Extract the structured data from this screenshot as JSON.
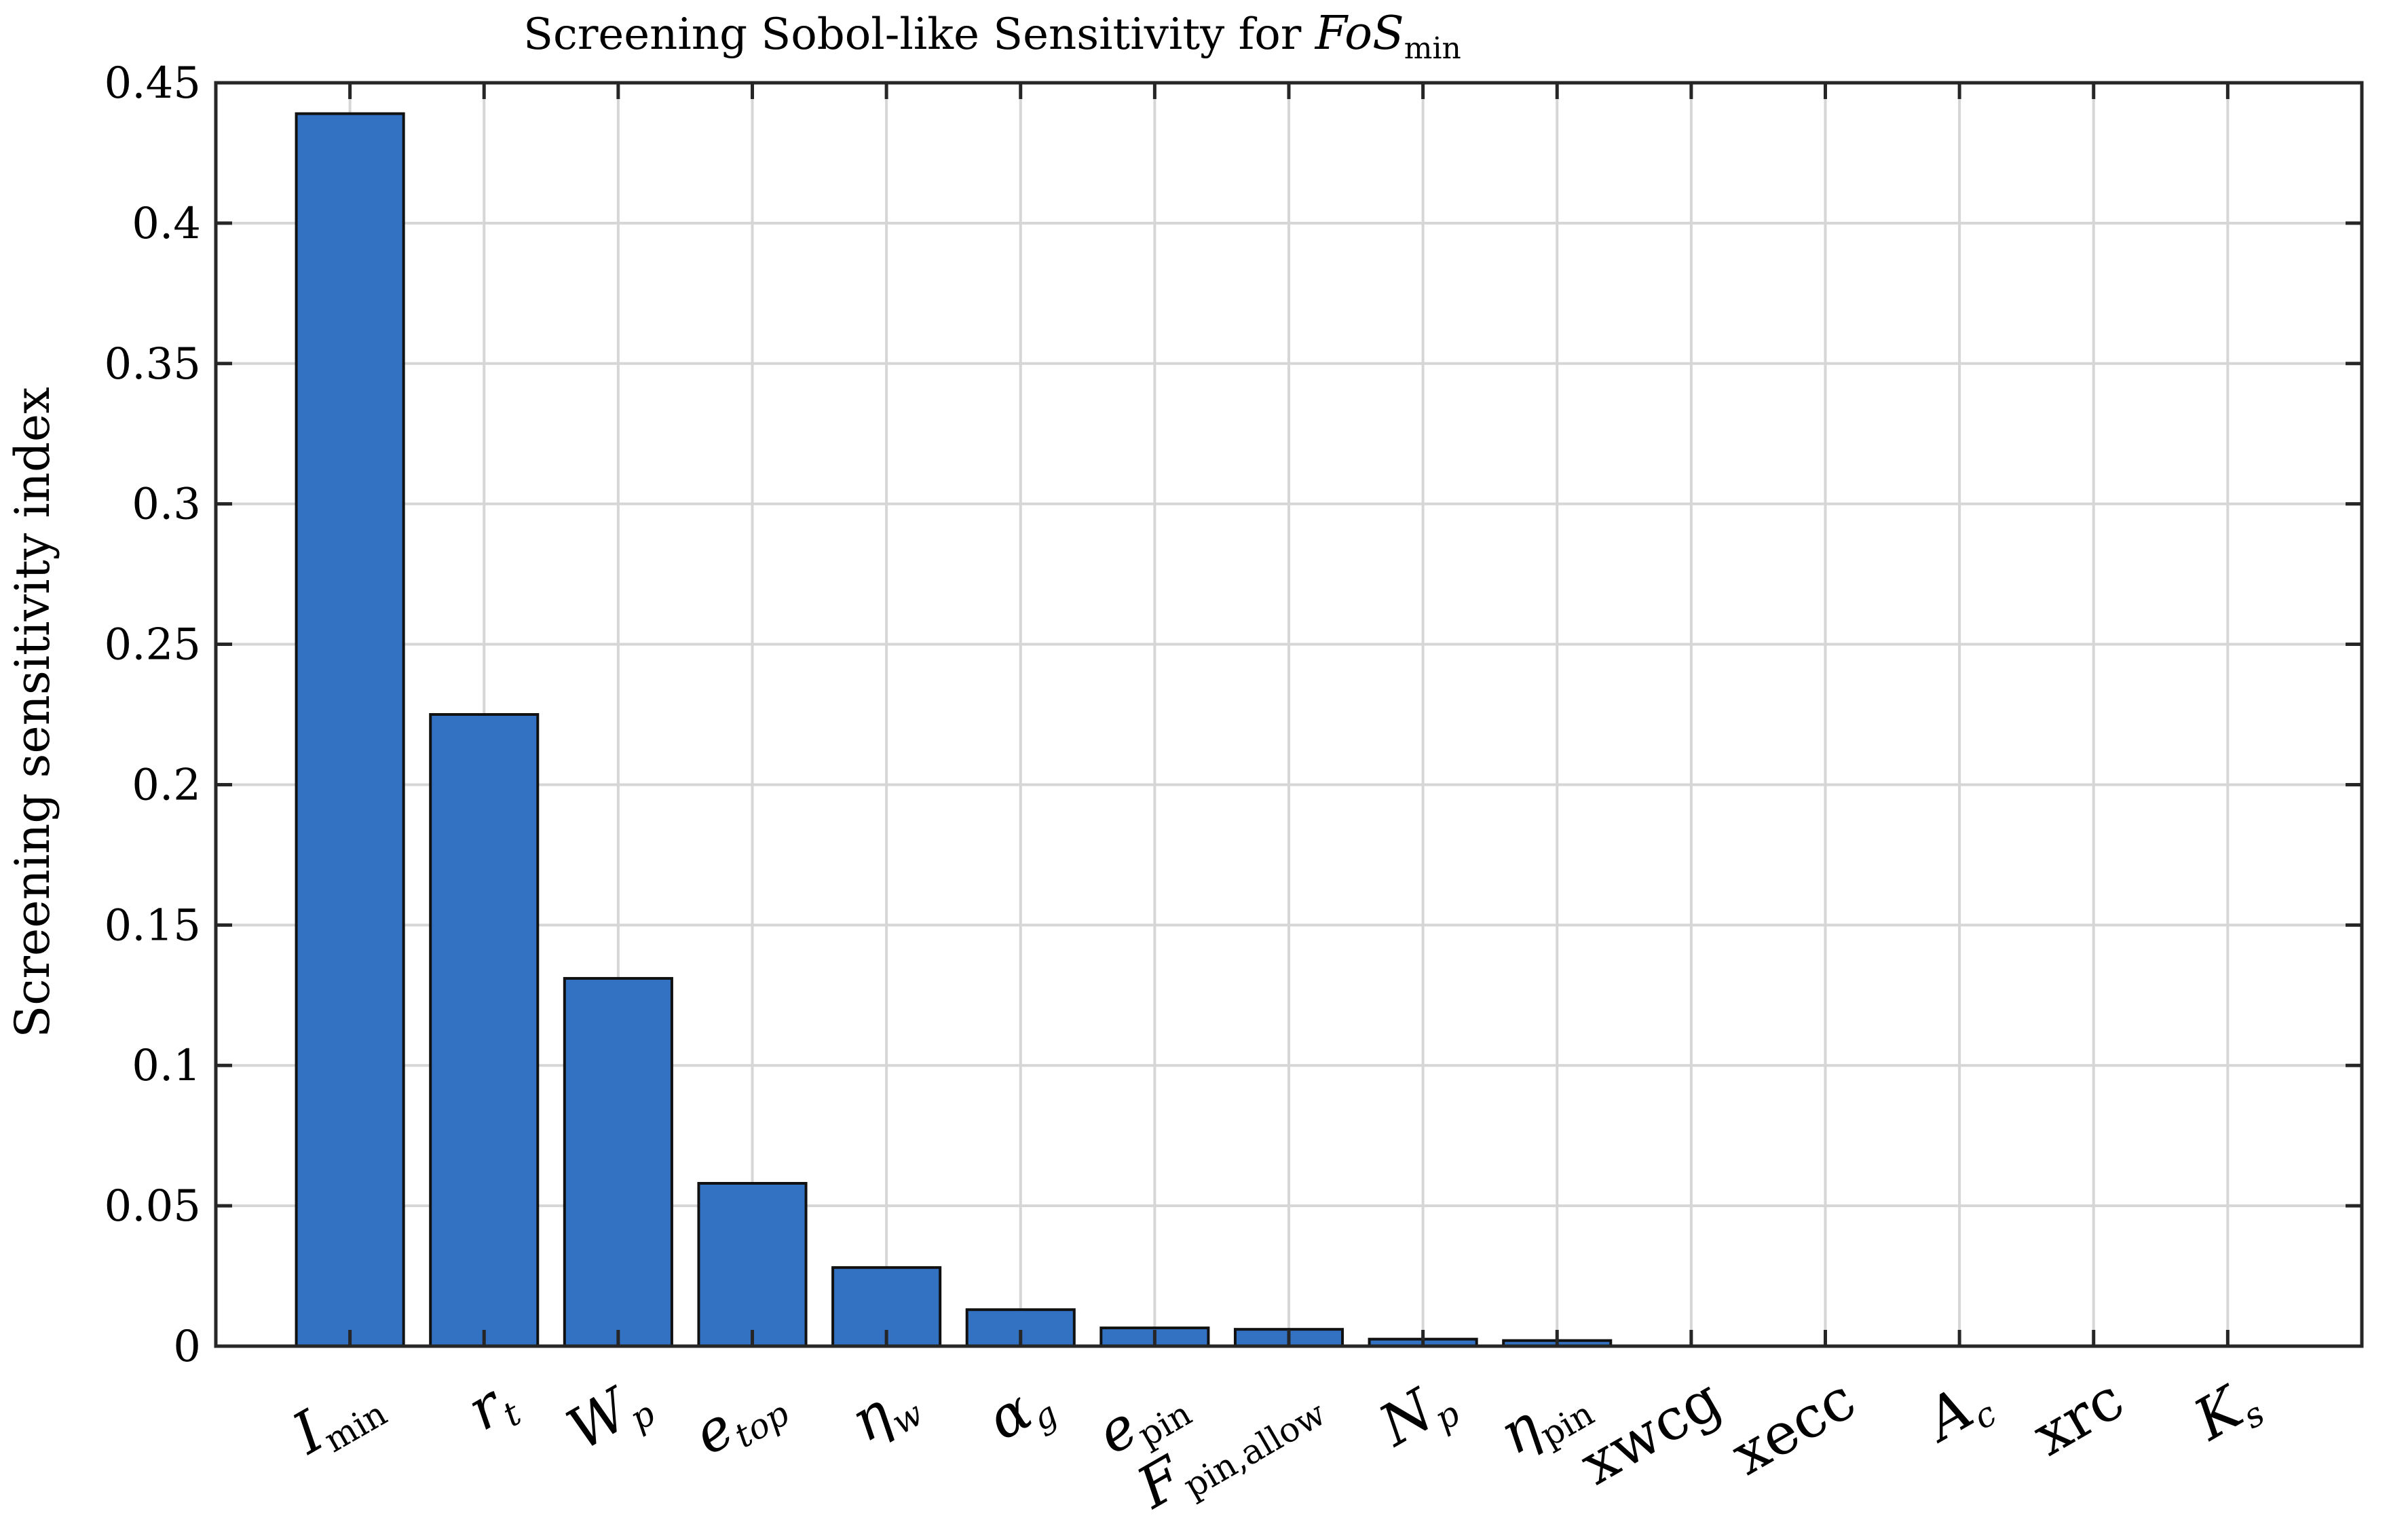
{
  "chart_data": {
    "type": "bar",
    "title": "Screening Sobol-like Sensitivity for FoS_min",
    "title_parts": {
      "prefix": "Screening Sobol-like Sensitivity for ",
      "math_base": "FoS",
      "math_sub": "min"
    },
    "xlabel": "",
    "ylabel": "Screening sensitivity index",
    "ylim": [
      0,
      0.45
    ],
    "yticks": [
      "0",
      "0.05",
      "0.1",
      "0.15",
      "0.2",
      "0.25",
      "0.3",
      "0.35",
      "0.4",
      "0.45"
    ],
    "grid": true,
    "legend": "none",
    "bar_color": "#3372c2",
    "categories": [
      {
        "base": "I",
        "sub": "min",
        "italic_base": true,
        "italic_sub": false
      },
      {
        "base": "r",
        "sub": "t",
        "italic_base": true,
        "italic_sub": true
      },
      {
        "base": "W",
        "sub": "p",
        "italic_base": true,
        "italic_sub": true
      },
      {
        "base": "e",
        "sub": "top",
        "italic_base": true,
        "italic_sub": true
      },
      {
        "base": "η",
        "sub": "w",
        "italic_base": true,
        "italic_sub": true
      },
      {
        "base": "α",
        "sub": "g",
        "italic_base": true,
        "italic_sub": true
      },
      {
        "base": "e",
        "sub": "pin",
        "italic_base": true,
        "italic_sub": false
      },
      {
        "base": "F",
        "sub": "pin,allow",
        "italic_base": true,
        "italic_sub": false
      },
      {
        "base": "N",
        "sub": "p",
        "italic_base": true,
        "italic_sub": true
      },
      {
        "base": "η",
        "sub": "pin",
        "italic_base": true,
        "italic_sub": false
      },
      {
        "base": "xwcg",
        "sub": "",
        "italic_base": false,
        "italic_sub": false
      },
      {
        "base": "xecc",
        "sub": "",
        "italic_base": false,
        "italic_sub": false
      },
      {
        "base": "A",
        "sub": "c",
        "italic_base": true,
        "italic_sub": true
      },
      {
        "base": "xrc",
        "sub": "",
        "italic_base": false,
        "italic_sub": false
      },
      {
        "base": "K",
        "sub": "s",
        "italic_base": true,
        "italic_sub": true
      }
    ],
    "values": [
      0.439,
      0.225,
      0.131,
      0.058,
      0.028,
      0.013,
      0.0065,
      0.006,
      0.0025,
      0.002,
      0,
      0,
      0,
      0,
      0
    ]
  }
}
